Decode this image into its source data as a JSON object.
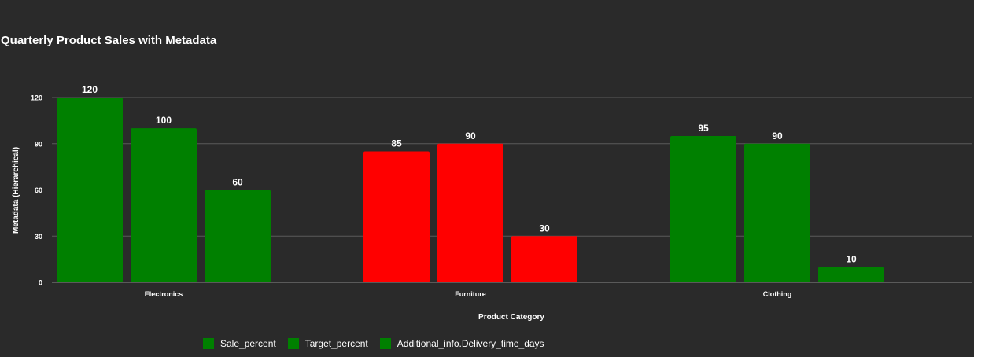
{
  "title": "Quarterly Product Sales with Metadata",
  "chart_data": {
    "type": "bar",
    "title": "Quarterly Product Sales with Metadata",
    "xlabel": "Product Category",
    "ylabel": "Metadata (Hierarchical)",
    "categories": [
      "Electronics",
      "Furniture",
      "Clothing"
    ],
    "series": [
      {
        "name": "Sale_percent",
        "values": [
          120,
          85,
          95
        ]
      },
      {
        "name": "Target_percent",
        "values": [
          100,
          90,
          90
        ]
      },
      {
        "name": "Additional_info.Delivery_time_days",
        "values": [
          60,
          30,
          10
        ]
      }
    ],
    "bar_colors": [
      [
        "#008000",
        "#008000",
        "#008000"
      ],
      [
        "#ff0000",
        "#ff0000",
        "#ff0000"
      ],
      [
        "#008000",
        "#008000",
        "#008000"
      ]
    ],
    "legend_color": "#008000",
    "ylim": [
      0,
      120
    ],
    "yticks": [
      0,
      30,
      60,
      90,
      120
    ],
    "grid": true,
    "legend_position": "bottom-left",
    "background": "#2a2a2a"
  }
}
